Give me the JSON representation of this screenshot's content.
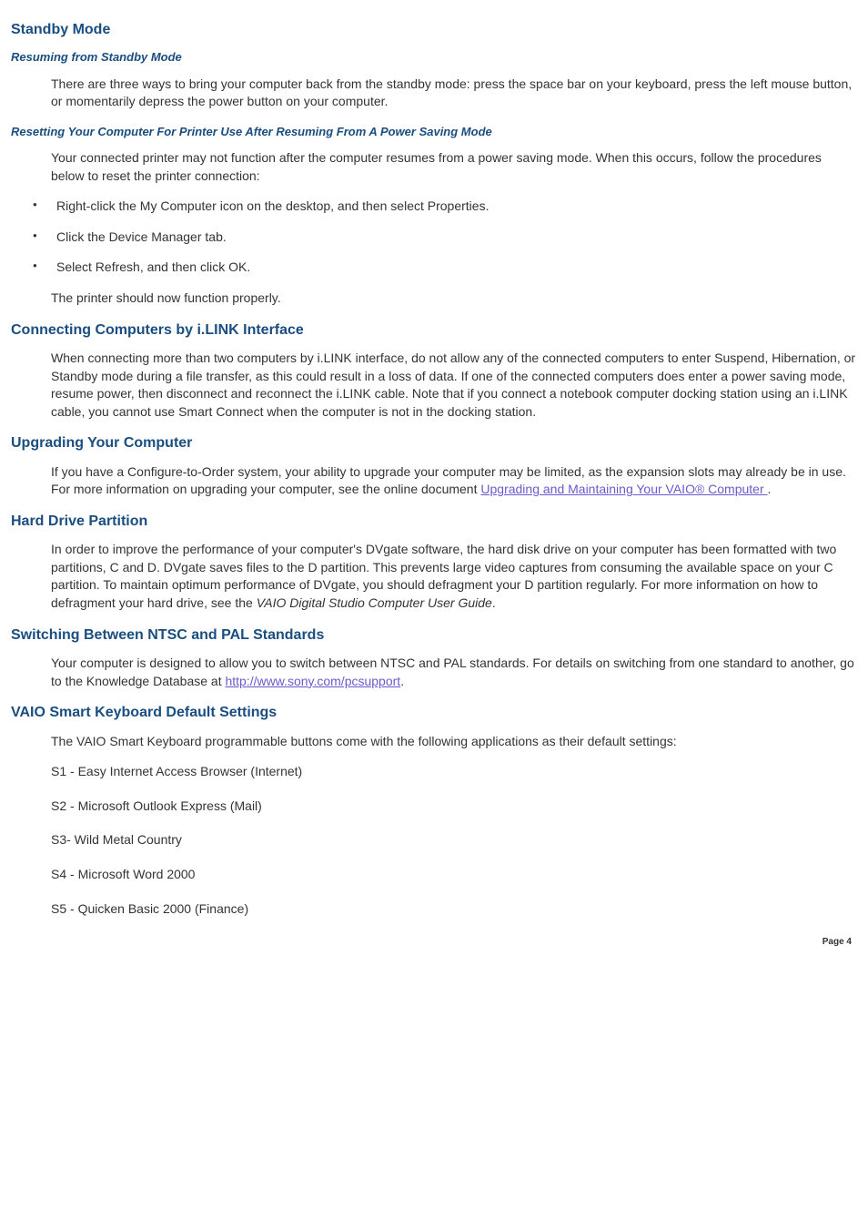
{
  "colors": {
    "headingBlue": "#1a4d80",
    "bodyText": "#333333",
    "link": "#6a5acd",
    "background": "#ffffff"
  },
  "typography": {
    "body_fontsize": 14,
    "heading2_fontsize": 16,
    "subheading_fontsize": 13,
    "pagenum_fontsize": 10,
    "font_family": "Verdana"
  },
  "s1": {
    "title": "Standby Mode",
    "sub1_title": "Resuming from Standby Mode",
    "sub1_p": "There are three ways to bring your computer back from the standby mode: press the space bar on your keyboard, press the left mouse button, or momentarily depress the power button on your computer.",
    "sub2_title": "Resetting Your Computer For Printer Use After Resuming From A Power Saving Mode",
    "sub2_p": "Your connected printer may not function after the computer resumes from a power saving mode. When this occurs, follow the procedures below to reset the printer connection:",
    "bullets": {
      "b1": "Right-click the My Computer icon on the desktop, and then select Properties.",
      "b2": "Click the Device Manager tab.",
      "b3": "Select Refresh, and then click OK."
    },
    "sub2_after": "The printer should now function properly."
  },
  "s2": {
    "title": "Connecting Computers by i.LINK Interface",
    "p": "When connecting more than two computers by i.LINK interface, do not allow any of the connected computers to enter Suspend, Hibernation, or Standby mode during a file transfer, as this could result in a loss of data. If one of the connected computers does enter a power saving mode, resume power, then disconnect and reconnect the i.LINK cable. Note that if you connect a notebook computer docking station using an i.LINK cable, you cannot use Smart Connect when the computer is not in the docking station."
  },
  "s3": {
    "title": "Upgrading Your Computer",
    "p_pre": "If you have a Configure-to-Order system, your ability to upgrade your computer may be limited, as the expansion slots may already be in use. For more information on upgrading your computer, see the online document ",
    "link_text": "Upgrading and Maintaining Your VAIO® Computer ",
    "p_post": "."
  },
  "s4": {
    "title": "Hard Drive Partition",
    "p_pre": "In order to improve the performance of your computer's DVgate  software, the hard disk drive on your computer has been formatted with two partitions, C and D. DVgate saves files to the D partition. This prevents large video captures from consuming the available space on your C partition. To maintain optimum performance of DVgate, you should defragment your D partition regularly. For more information on how to defragment your hard drive, see the ",
    "italic": "VAIO Digital Studio  Computer User Guide",
    "p_post": "."
  },
  "s5": {
    "title": "Switching Between NTSC and PAL Standards",
    "p_pre": "Your computer is designed to allow you to switch between NTSC and PAL standards. For details on switching from one standard to another, go to the Knowledge Database at ",
    "link_text": "http://www.sony.com/pcsupport",
    "p_post": "."
  },
  "s6": {
    "title": "VAIO Smart  Keyboard Default Settings",
    "intro": "The VAIO Smart Keyboard programmable buttons come with the following applications as their default settings:",
    "items": {
      "i1": "S1 - Easy Internet Access Browser (Internet)",
      "i2": "S2 - Microsoft  Outlook  Express (Mail)",
      "i3": "S3- Wild Metal Country",
      "i4": "S4 - Microsoft  Word 2000",
      "i5": "S5 - Quicken  Basic 2000 (Finance)"
    }
  },
  "page_num": "Page 4"
}
